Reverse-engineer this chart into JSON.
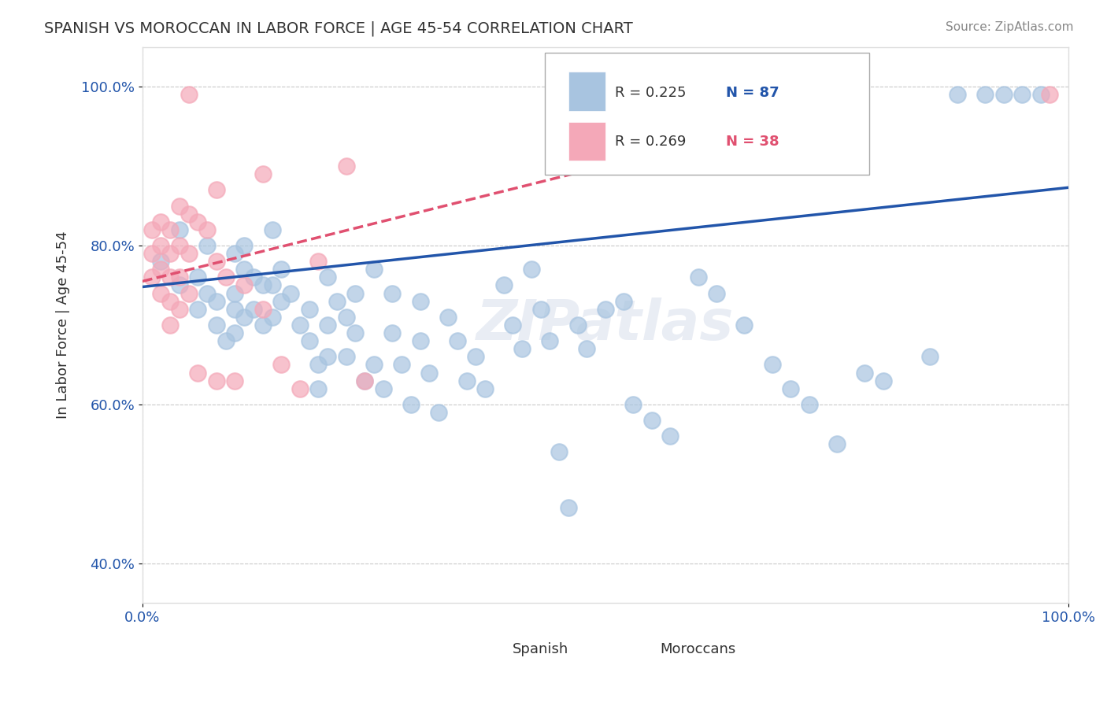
{
  "title": "SPANISH VS MOROCCAN IN LABOR FORCE | AGE 45-54 CORRELATION CHART",
  "source_text": "Source: ZipAtlas.com",
  "xlabel": "",
  "ylabel": "In Labor Force | Age 45-54",
  "xlim": [
    0,
    1
  ],
  "ylim": [
    0,
    1
  ],
  "xtick_labels": [
    "0.0%",
    "100.0%"
  ],
  "ytick_labels": [
    "40.0%",
    "60.0%",
    "80.0%",
    "100.0%"
  ],
  "watermark": "ZIPatlas",
  "legend_r_spanish": "R = 0.225",
  "legend_n_spanish": "N = 87",
  "legend_r_moroccan": "R = 0.269",
  "legend_n_moroccan": "N = 38",
  "spanish_color": "#a8c4e0",
  "moroccan_color": "#f4a8b8",
  "spanish_line_color": "#2255aa",
  "moroccan_line_color": "#e05070",
  "spanish_scatter": [
    [
      0.02,
      0.78
    ],
    [
      0.04,
      0.82
    ],
    [
      0.04,
      0.75
    ],
    [
      0.06,
      0.76
    ],
    [
      0.06,
      0.72
    ],
    [
      0.07,
      0.8
    ],
    [
      0.07,
      0.74
    ],
    [
      0.08,
      0.73
    ],
    [
      0.08,
      0.7
    ],
    [
      0.09,
      0.68
    ],
    [
      0.1,
      0.79
    ],
    [
      0.1,
      0.74
    ],
    [
      0.1,
      0.72
    ],
    [
      0.1,
      0.69
    ],
    [
      0.11,
      0.8
    ],
    [
      0.11,
      0.77
    ],
    [
      0.11,
      0.71
    ],
    [
      0.12,
      0.76
    ],
    [
      0.12,
      0.72
    ],
    [
      0.13,
      0.75
    ],
    [
      0.13,
      0.7
    ],
    [
      0.14,
      0.82
    ],
    [
      0.14,
      0.75
    ],
    [
      0.14,
      0.71
    ],
    [
      0.15,
      0.77
    ],
    [
      0.15,
      0.73
    ],
    [
      0.16,
      0.74
    ],
    [
      0.17,
      0.7
    ],
    [
      0.18,
      0.72
    ],
    [
      0.18,
      0.68
    ],
    [
      0.19,
      0.65
    ],
    [
      0.19,
      0.62
    ],
    [
      0.2,
      0.76
    ],
    [
      0.2,
      0.7
    ],
    [
      0.2,
      0.66
    ],
    [
      0.21,
      0.73
    ],
    [
      0.22,
      0.71
    ],
    [
      0.22,
      0.66
    ],
    [
      0.23,
      0.74
    ],
    [
      0.23,
      0.69
    ],
    [
      0.24,
      0.63
    ],
    [
      0.25,
      0.77
    ],
    [
      0.25,
      0.65
    ],
    [
      0.26,
      0.62
    ],
    [
      0.27,
      0.74
    ],
    [
      0.27,
      0.69
    ],
    [
      0.28,
      0.65
    ],
    [
      0.29,
      0.6
    ],
    [
      0.3,
      0.73
    ],
    [
      0.3,
      0.68
    ],
    [
      0.31,
      0.64
    ],
    [
      0.32,
      0.59
    ],
    [
      0.33,
      0.71
    ],
    [
      0.34,
      0.68
    ],
    [
      0.35,
      0.63
    ],
    [
      0.36,
      0.66
    ],
    [
      0.37,
      0.62
    ],
    [
      0.39,
      0.75
    ],
    [
      0.4,
      0.7
    ],
    [
      0.41,
      0.67
    ],
    [
      0.42,
      0.77
    ],
    [
      0.43,
      0.72
    ],
    [
      0.44,
      0.68
    ],
    [
      0.45,
      0.54
    ],
    [
      0.46,
      0.47
    ],
    [
      0.47,
      0.7
    ],
    [
      0.48,
      0.67
    ],
    [
      0.5,
      0.72
    ],
    [
      0.52,
      0.73
    ],
    [
      0.53,
      0.6
    ],
    [
      0.55,
      0.58
    ],
    [
      0.57,
      0.56
    ],
    [
      0.6,
      0.76
    ],
    [
      0.62,
      0.74
    ],
    [
      0.65,
      0.7
    ],
    [
      0.68,
      0.65
    ],
    [
      0.7,
      0.62
    ],
    [
      0.72,
      0.6
    ],
    [
      0.75,
      0.55
    ],
    [
      0.78,
      0.64
    ],
    [
      0.8,
      0.63
    ],
    [
      0.85,
      0.66
    ],
    [
      0.88,
      0.99
    ],
    [
      0.91,
      0.99
    ],
    [
      0.93,
      0.99
    ],
    [
      0.95,
      0.99
    ],
    [
      0.97,
      0.99
    ]
  ],
  "moroccan_scatter": [
    [
      0.01,
      0.82
    ],
    [
      0.01,
      0.79
    ],
    [
      0.01,
      0.76
    ],
    [
      0.02,
      0.83
    ],
    [
      0.02,
      0.8
    ],
    [
      0.02,
      0.77
    ],
    [
      0.02,
      0.74
    ],
    [
      0.03,
      0.82
    ],
    [
      0.03,
      0.79
    ],
    [
      0.03,
      0.76
    ],
    [
      0.03,
      0.73
    ],
    [
      0.03,
      0.7
    ],
    [
      0.04,
      0.85
    ],
    [
      0.04,
      0.8
    ],
    [
      0.04,
      0.76
    ],
    [
      0.04,
      0.72
    ],
    [
      0.05,
      0.84
    ],
    [
      0.05,
      0.79
    ],
    [
      0.05,
      0.74
    ],
    [
      0.06,
      0.83
    ],
    [
      0.06,
      0.64
    ],
    [
      0.07,
      0.82
    ],
    [
      0.08,
      0.87
    ],
    [
      0.08,
      0.78
    ],
    [
      0.08,
      0.63
    ],
    [
      0.09,
      0.76
    ],
    [
      0.1,
      0.63
    ],
    [
      0.11,
      0.75
    ],
    [
      0.13,
      0.89
    ],
    [
      0.13,
      0.72
    ],
    [
      0.15,
      0.65
    ],
    [
      0.17,
      0.62
    ],
    [
      0.19,
      0.78
    ],
    [
      0.22,
      0.9
    ],
    [
      0.24,
      0.63
    ],
    [
      0.05,
      0.99
    ],
    [
      0.55,
      0.99
    ],
    [
      0.98,
      0.99
    ]
  ],
  "spanish_trendline": [
    [
      0.0,
      0.748
    ],
    [
      1.0,
      0.873
    ]
  ],
  "moroccan_trendline": [
    [
      0.0,
      0.755
    ],
    [
      0.55,
      0.915
    ]
  ]
}
